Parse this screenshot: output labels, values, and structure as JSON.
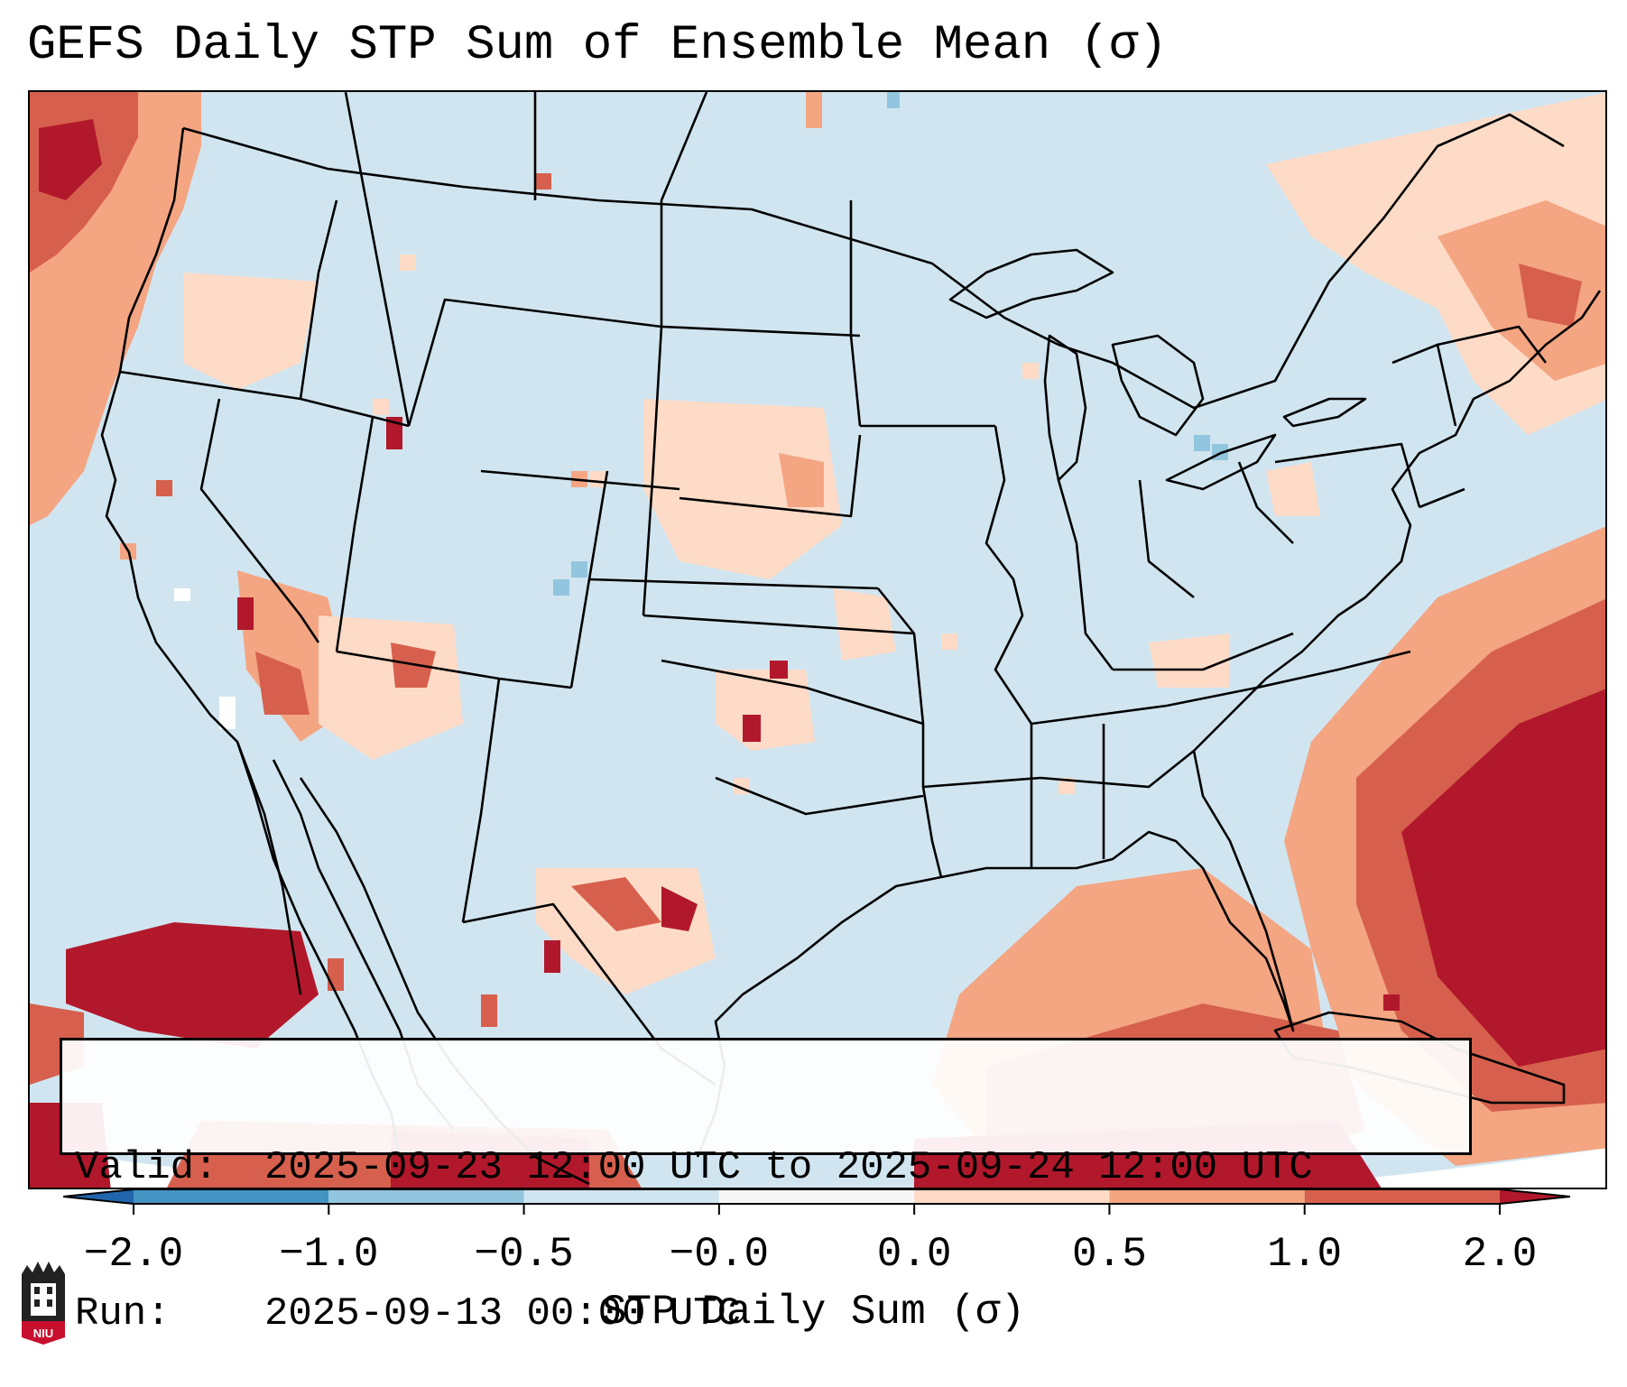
{
  "title": "GEFS Daily STP Sum of Ensemble Mean (σ)",
  "info": {
    "valid_label": "Valid:",
    "valid_value": "2025-09-23 12:00 UTC to 2025-09-24 12:00 UTC",
    "run_label": "Run:",
    "run_value": "2025-09-13 00:00 UTC"
  },
  "colorbar": {
    "label": "STP Daily Sum (σ)",
    "ticks": [
      "−2.0",
      "−1.0",
      "−0.5",
      "−0.0",
      "0.0",
      "0.5",
      "1.0",
      "2.0"
    ],
    "bins": [
      {
        "from": "-inf",
        "to": -2.0,
        "color": "#2166ac"
      },
      {
        "from": -2.0,
        "to": -1.0,
        "color": "#4393c3"
      },
      {
        "from": -1.0,
        "to": -0.5,
        "color": "#92c5de"
      },
      {
        "from": -0.5,
        "to": 0.0,
        "color": "#d1e5f0"
      },
      {
        "from": 0.0,
        "to": 0.0,
        "color": "#f7f7f7"
      },
      {
        "from": 0.0,
        "to": 0.5,
        "color": "#fddbc7"
      },
      {
        "from": 0.5,
        "to": 1.0,
        "color": "#f4a582"
      },
      {
        "from": 1.0,
        "to": 2.0,
        "color": "#d6604d"
      },
      {
        "from": 2.0,
        "to": "inf",
        "color": "#b2182b"
      }
    ]
  },
  "colors": {
    "background_field": "#d1e5f0",
    "positive_low": "#fddbc7",
    "positive_mid": "#f4a582",
    "positive_high": "#d6604d",
    "positive_max": "#b2182b",
    "negative_low": "#92c5de",
    "logo_red": "#c8102e"
  },
  "logo": {
    "text": "NIU",
    "icon": "university-logo-icon"
  }
}
